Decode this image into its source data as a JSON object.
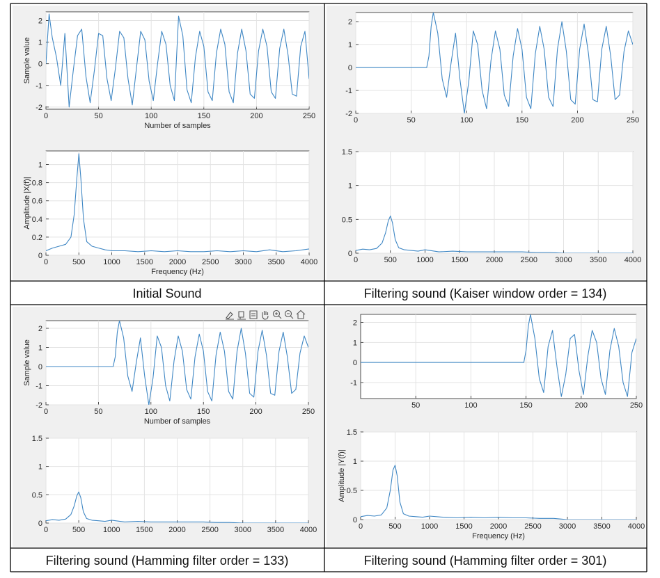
{
  "line_color": "#3f87c4",
  "panels": [
    {
      "caption": "Initial Sound",
      "toolbar_icons": [],
      "time": {
        "ylabel": "Sample value",
        "xlabel": "Number of samples",
        "xlim": [
          0,
          250
        ],
        "ylim": [
          -2.1,
          2.4
        ],
        "xticks": [
          0,
          50,
          100,
          150,
          200,
          250
        ],
        "yticks": [
          -2,
          -1,
          0,
          1,
          2
        ]
      },
      "spectrum": {
        "ylabel": "Amplitude |X(f)|",
        "xlabel": "Frequency (Hz)",
        "xlim": [
          0,
          4000
        ],
        "ylim": [
          0,
          1.15
        ],
        "xticks": [
          0,
          500,
          1000,
          1500,
          2000,
          2500,
          3000,
          3500,
          4000
        ],
        "yticks": [
          0,
          0.2,
          0.4,
          0.6,
          0.8,
          1
        ]
      }
    },
    {
      "caption": "Filtering sound (Kaiser window order = 134)",
      "toolbar_icons": [],
      "time": {
        "ylabel": "",
        "xlabel": "",
        "xlim": [
          0,
          250
        ],
        "ylim": [
          -2,
          2.4
        ],
        "xticks": [
          0,
          50,
          100,
          150,
          200,
          250
        ],
        "yticks": [
          -2,
          -1,
          0,
          1,
          2
        ]
      },
      "spectrum": {
        "ylabel": "",
        "xlabel": "",
        "xlim": [
          0,
          4000
        ],
        "ylim": [
          0,
          1.5
        ],
        "xticks": [
          0,
          500,
          1000,
          1500,
          2000,
          2500,
          3000,
          3500,
          4000
        ],
        "yticks": [
          0,
          0.5,
          1,
          1.5
        ]
      }
    },
    {
      "caption": "Filtering sound (Hamming filter order = 133)",
      "toolbar_icons": [
        "brush-icon",
        "data-tip-icon",
        "legend-icon",
        "pan-icon",
        "zoom-in-icon",
        "zoom-out-icon",
        "home-icon"
      ],
      "time": {
        "ylabel": "Sample value",
        "xlabel": "Number of samples",
        "xlim": [
          0,
          250
        ],
        "ylim": [
          -2,
          2.4
        ],
        "xticks": [
          0,
          50,
          100,
          150,
          200,
          250
        ],
        "yticks": [
          -2,
          -1,
          0,
          1,
          2
        ]
      },
      "spectrum": {
        "ylabel": "",
        "xlabel": "",
        "xlim": [
          0,
          4000
        ],
        "ylim": [
          0,
          1.5
        ],
        "xticks": [
          0,
          500,
          1000,
          1500,
          2000,
          2500,
          3000,
          3500,
          4000
        ],
        "yticks": [
          0,
          0.5,
          1,
          1.5
        ]
      }
    },
    {
      "caption": "Filtering sound (Hamming filter order = 301)",
      "toolbar_icons": [],
      "time": {
        "ylabel": "",
        "xlabel": "",
        "xlim": [
          0,
          250
        ],
        "ylim": [
          -1.8,
          2.4
        ],
        "xticks": [
          50,
          100,
          150,
          200,
          250
        ],
        "yticks": [
          -1,
          0,
          1,
          2
        ]
      },
      "spectrum": {
        "ylabel": "Amplitude |Y(f)|",
        "xlabel": "Frequency (Hz)",
        "xlim": [
          0,
          4000
        ],
        "ylim": [
          0,
          1.5
        ],
        "xticks": [
          0,
          500,
          1000,
          1500,
          2000,
          2500,
          3000,
          3500,
          4000
        ],
        "yticks": [
          0,
          0.5,
          1,
          1.5
        ]
      }
    }
  ],
  "chart_data": [
    {
      "type": "line",
      "panel": 0,
      "plot": "time",
      "x": [
        0,
        3,
        6,
        10,
        14,
        18,
        22,
        26,
        30,
        34,
        38,
        42,
        46,
        50,
        54,
        58,
        62,
        66,
        70,
        74,
        78,
        82,
        86,
        90,
        94,
        98,
        102,
        106,
        110,
        114,
        118,
        122,
        126,
        130,
        134,
        138,
        142,
        146,
        150,
        154,
        158,
        162,
        166,
        170,
        174,
        178,
        182,
        186,
        190,
        194,
        198,
        202,
        206,
        210,
        214,
        218,
        222,
        226,
        230,
        234,
        238,
        242,
        246,
        250
      ],
      "y": [
        0,
        2.3,
        1.2,
        0.3,
        -1.0,
        1.4,
        -2.0,
        -0.3,
        1.3,
        1.6,
        -0.6,
        -1.8,
        -0.3,
        1.4,
        1.3,
        -0.7,
        -1.7,
        -0.2,
        1.5,
        1.2,
        -0.7,
        -1.9,
        -0.2,
        1.5,
        1.1,
        -0.8,
        -1.7,
        0,
        1.5,
        0.9,
        -1.0,
        -1.7,
        2.2,
        1.3,
        -1.2,
        -1.8,
        0.3,
        1.5,
        0.8,
        -1.3,
        -1.7,
        0.5,
        1.6,
        0.9,
        -1.3,
        -1.8,
        0.5,
        1.6,
        0.6,
        -1.4,
        -1.6,
        0.6,
        1.6,
        0.8,
        -1.3,
        -1.6,
        0.7,
        1.6,
        0.4,
        -1.4,
        -1.5,
        0.8,
        1.5,
        -0.7
      ]
    },
    {
      "type": "line",
      "panel": 0,
      "plot": "spectrum",
      "x": [
        0,
        100,
        200,
        300,
        380,
        430,
        470,
        500,
        530,
        570,
        620,
        700,
        800,
        900,
        1000,
        1200,
        1400,
        1600,
        1800,
        2000,
        2200,
        2400,
        2600,
        2800,
        3000,
        3200,
        3400,
        3600,
        3800,
        4000
      ],
      "y": [
        0.05,
        0.08,
        0.1,
        0.12,
        0.2,
        0.45,
        0.85,
        1.12,
        0.85,
        0.4,
        0.15,
        0.1,
        0.08,
        0.06,
        0.05,
        0.05,
        0.04,
        0.05,
        0.04,
        0.05,
        0.04,
        0.04,
        0.05,
        0.04,
        0.05,
        0.04,
        0.06,
        0.04,
        0.05,
        0.07
      ]
    },
    {
      "type": "line",
      "panel": 1,
      "plot": "time",
      "x": [
        0,
        64,
        66,
        68,
        70,
        74,
        78,
        82,
        86,
        90,
        94,
        98,
        102,
        106,
        110,
        114,
        118,
        122,
        126,
        130,
        134,
        138,
        142,
        146,
        150,
        154,
        158,
        162,
        166,
        170,
        174,
        178,
        182,
        186,
        190,
        194,
        198,
        202,
        206,
        210,
        214,
        218,
        222,
        226,
        230,
        234,
        238,
        242,
        246,
        250
      ],
      "y": [
        0,
        0,
        0.5,
        1.8,
        2.4,
        1.5,
        -0.5,
        -1.3,
        0.2,
        1.5,
        -0.5,
        -2.0,
        -0.6,
        1.6,
        1.0,
        -1.0,
        -1.8,
        0.3,
        1.6,
        0.8,
        -1.2,
        -1.7,
        0.5,
        1.7,
        0.8,
        -1.3,
        -1.8,
        0.6,
        1.8,
        0.8,
        -1.3,
        -1.7,
        0.8,
        2.0,
        0.7,
        -1.4,
        -1.6,
        0.8,
        1.9,
        0.6,
        -1.4,
        -1.5,
        0.8,
        1.8,
        0.5,
        -1.4,
        -1.2,
        0.7,
        1.6,
        1.0
      ]
    },
    {
      "type": "line",
      "panel": 1,
      "plot": "spectrum",
      "x": [
        0,
        100,
        200,
        300,
        380,
        430,
        470,
        500,
        530,
        570,
        620,
        700,
        800,
        900,
        1000,
        1200,
        1400,
        1600,
        1800,
        2000,
        2200,
        2400,
        2600,
        2800,
        3000,
        3200,
        3400,
        3600,
        3800,
        4000
      ],
      "y": [
        0.04,
        0.06,
        0.05,
        0.07,
        0.15,
        0.3,
        0.48,
        0.55,
        0.45,
        0.2,
        0.08,
        0.05,
        0.04,
        0.03,
        0.05,
        0.02,
        0.03,
        0.02,
        0.02,
        0.02,
        0.02,
        0.02,
        0.01,
        0.01,
        0,
        0,
        0,
        0,
        0,
        0
      ]
    },
    {
      "type": "line",
      "panel": 2,
      "plot": "time",
      "x": [
        0,
        64,
        66,
        68,
        70,
        74,
        78,
        82,
        86,
        90,
        94,
        98,
        102,
        106,
        110,
        114,
        118,
        122,
        126,
        130,
        134,
        138,
        142,
        146,
        150,
        154,
        158,
        162,
        166,
        170,
        174,
        178,
        182,
        186,
        190,
        194,
        198,
        202,
        206,
        210,
        214,
        218,
        222,
        226,
        230,
        234,
        238,
        242,
        246,
        250
      ],
      "y": [
        0,
        0,
        0.5,
        1.8,
        2.4,
        1.5,
        -0.5,
        -1.3,
        0.2,
        1.5,
        -0.5,
        -2.0,
        -0.6,
        1.6,
        1.0,
        -1.0,
        -1.8,
        0.3,
        1.6,
        0.8,
        -1.2,
        -1.7,
        0.5,
        1.7,
        0.8,
        -1.3,
        -1.8,
        0.6,
        1.8,
        0.8,
        -1.3,
        -1.7,
        0.8,
        2.0,
        0.7,
        -1.4,
        -1.6,
        0.8,
        1.9,
        0.6,
        -1.4,
        -1.5,
        0.8,
        1.8,
        0.5,
        -1.4,
        -1.2,
        0.7,
        1.6,
        1.0
      ]
    },
    {
      "type": "line",
      "panel": 2,
      "plot": "spectrum",
      "x": [
        0,
        100,
        200,
        300,
        380,
        430,
        470,
        500,
        530,
        570,
        620,
        700,
        800,
        900,
        1000,
        1200,
        1400,
        1600,
        1800,
        2000,
        2200,
        2400,
        2600,
        2800,
        3000,
        3200,
        3400,
        3600,
        3800,
        4000
      ],
      "y": [
        0.04,
        0.06,
        0.05,
        0.07,
        0.15,
        0.3,
        0.48,
        0.55,
        0.45,
        0.2,
        0.08,
        0.05,
        0.04,
        0.03,
        0.05,
        0.02,
        0.03,
        0.02,
        0.02,
        0.02,
        0.02,
        0.02,
        0.01,
        0.01,
        0,
        0,
        0,
        0,
        0,
        0
      ]
    },
    {
      "type": "line",
      "panel": 3,
      "plot": "time",
      "x": [
        0,
        148,
        150,
        152,
        154,
        158,
        162,
        166,
        170,
        174,
        178,
        182,
        186,
        190,
        194,
        198,
        202,
        206,
        210,
        214,
        218,
        222,
        226,
        230,
        234,
        238,
        242,
        246,
        250
      ],
      "y": [
        0,
        0,
        0.6,
        1.8,
        2.4,
        1.2,
        -0.8,
        -1.5,
        0.8,
        1.6,
        -0.2,
        -1.7,
        -0.6,
        1.2,
        1.4,
        -0.4,
        -1.6,
        0.3,
        1.6,
        1.0,
        -0.8,
        -1.6,
        0.6,
        1.7,
        0.8,
        -1.0,
        -1.7,
        0.5,
        1.2
      ]
    },
    {
      "type": "line",
      "panel": 3,
      "plot": "spectrum",
      "x": [
        0,
        100,
        200,
        300,
        380,
        430,
        470,
        500,
        530,
        570,
        620,
        700,
        800,
        900,
        1000,
        1200,
        1400,
        1600,
        1800,
        2000,
        2200,
        2400,
        2600,
        2800,
        3000,
        3200,
        3400,
        3600,
        3800,
        4000
      ],
      "y": [
        0.05,
        0.07,
        0.06,
        0.08,
        0.2,
        0.5,
        0.85,
        0.93,
        0.75,
        0.3,
        0.1,
        0.06,
        0.05,
        0.04,
        0.06,
        0.04,
        0.03,
        0.04,
        0.03,
        0.04,
        0.03,
        0.03,
        0.02,
        0.02,
        0,
        0,
        0,
        0,
        0,
        0
      ]
    }
  ]
}
